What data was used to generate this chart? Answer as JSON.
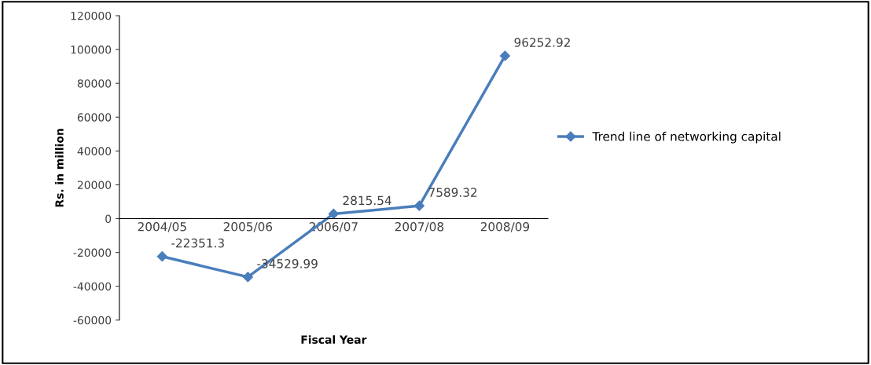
{
  "chart_data": {
    "type": "line",
    "xlabel": "Fiscal Year",
    "ylabel": "Rs. in million",
    "categories": [
      "2004/05",
      "2005/06",
      "2006/07",
      "2007/08",
      "2008/09"
    ],
    "series": [
      {
        "name": "Trend line of networking capital",
        "color": "#4a7ebb",
        "values": [
          -22351.3,
          -34529.99,
          2815.54,
          7589.32,
          96252.92
        ],
        "value_labels": [
          "-22351.3",
          "-34529.99",
          "2815.54",
          "7589.32",
          "96252.92"
        ]
      }
    ],
    "ylim": [
      -60000,
      120000
    ],
    "yticks": [
      -60000,
      -40000,
      -20000,
      0,
      20000,
      40000,
      60000,
      80000,
      100000,
      120000
    ],
    "grid": false,
    "legend": "right",
    "marker": "diamond",
    "line_style": "solid"
  }
}
